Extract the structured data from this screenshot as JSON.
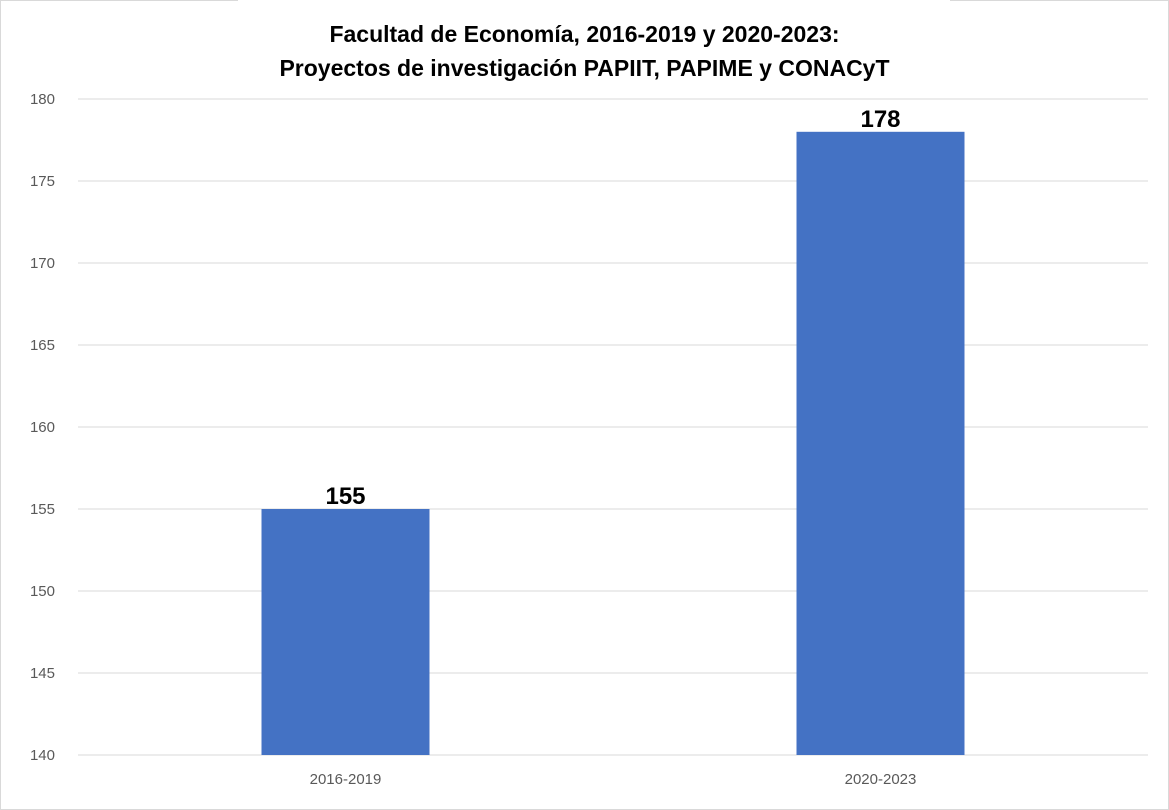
{
  "chart_data": {
    "type": "bar",
    "title_line1": "Facultad de Economía, 2016-2019 y 2020-2023:",
    "title_line2": "Proyectos de investigación PAPIIT, PAPIME y CONACyT",
    "categories": [
      "2016-2019",
      "2020-2023"
    ],
    "values": [
      155,
      178
    ],
    "data_labels": [
      "155",
      "178"
    ],
    "ylim": [
      140,
      180
    ],
    "yticks": [
      140,
      145,
      150,
      155,
      160,
      165,
      170,
      175,
      180
    ],
    "bar_color": "#4472C4",
    "grid": true,
    "legend": "none",
    "xlabel": "",
    "ylabel": ""
  }
}
